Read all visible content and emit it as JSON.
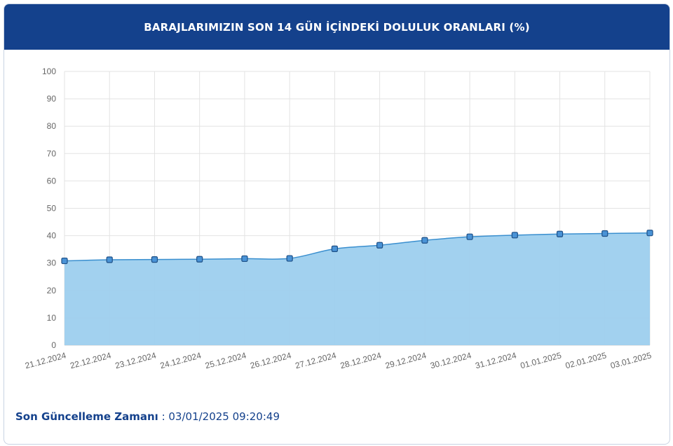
{
  "header": {
    "title": "BARAJLARIMIZIN SON 14 GÜN İÇİNDEKİ DOLULUK ORANLARI (%)"
  },
  "footer": {
    "label": "Son Güncelleme Zamanı",
    "separator": " : ",
    "value": "03/01/2025 09:20:49"
  },
  "colors": {
    "header_bg": "#14418c",
    "area_fill": "#9dcfee",
    "line": "#3a8fcf",
    "marker_fill": "#4a93d6",
    "marker_stroke": "#1d4f86",
    "grid": "#e3e3e3"
  },
  "chart_data": {
    "type": "area",
    "x": [
      "21.12.2024",
      "22.12.2024",
      "23.12.2024",
      "24.12.2024",
      "25.12.2024",
      "26.12.2024",
      "27.12.2024",
      "28.12.2024",
      "29.12.2024",
      "30.12.2024",
      "31.12.2024",
      "01.01.2025",
      "02.01.2025",
      "03.01.2025"
    ],
    "series": [
      {
        "values": [
          30.8,
          31.2,
          31.3,
          31.4,
          31.6,
          31.7,
          35.2,
          36.5,
          38.3,
          39.6,
          40.2,
          40.6,
          40.8,
          41.0
        ]
      }
    ],
    "yticks": [
      0,
      10,
      20,
      30,
      40,
      50,
      60,
      70,
      80,
      90,
      100
    ],
    "ylim": [
      0,
      100
    ],
    "grid": true
  }
}
